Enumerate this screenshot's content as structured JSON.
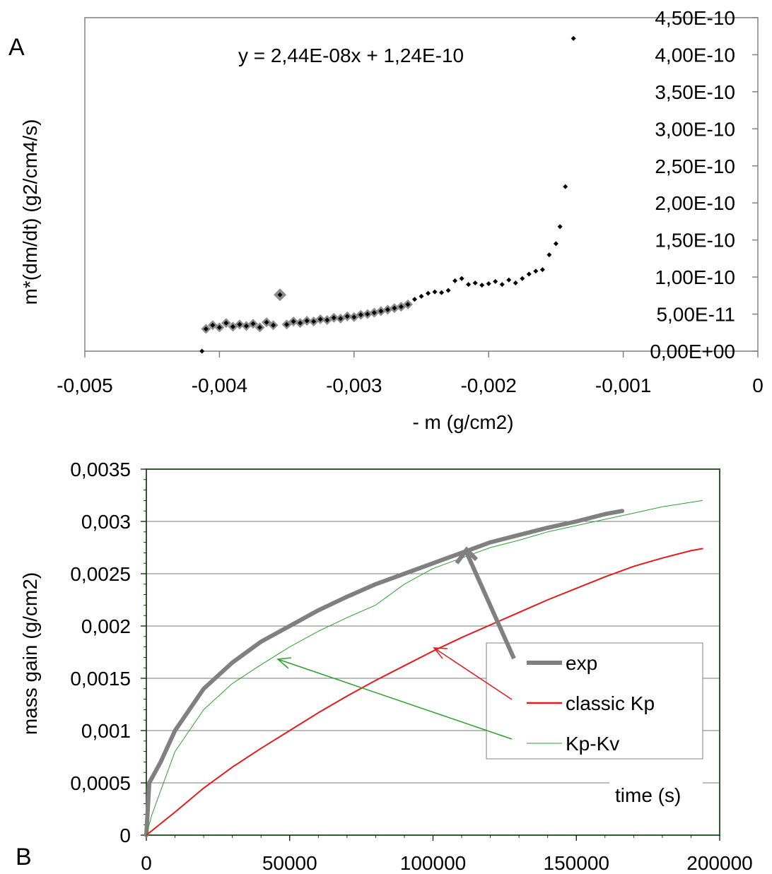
{
  "chart_data": [
    {
      "panel_label": "A",
      "type": "scatter",
      "equation": "y = 2,44E-08x + 1,24E-10",
      "xlabel": "- m (g/cm2)",
      "ylabel": "m*(dm/dt)  (g2/cm4/s)",
      "xlim": [
        -0.005,
        0
      ],
      "ylim": [
        0,
        4.5e-10
      ],
      "x_ticks": [
        -0.005,
        -0.004,
        -0.003,
        -0.002,
        -0.001,
        0
      ],
      "x_tick_labels": [
        "-0,005",
        "-0,004",
        "-0,003",
        "-0,002",
        "-0,001",
        "0"
      ],
      "y_ticks": [
        0,
        5e-11,
        1e-10,
        1.5e-10,
        2e-10,
        2.5e-10,
        3e-10,
        3.5e-10,
        4e-10,
        4.5e-10
      ],
      "y_tick_labels": [
        "0,00E+00",
        "5,00E-11",
        "1,00E-10",
        "1,50E-10",
        "2,00E-10",
        "2,50E-10",
        "3,00E-10",
        "3,50E-10",
        "4,00E-10",
        "4,50E-10"
      ],
      "y_axis_side": "right",
      "points": [
        [
          -0.00413,
          0.0
        ],
        [
          -0.0041,
          3e-11
        ],
        [
          -0.00405,
          3.5e-11
        ],
        [
          -0.004,
          3.2e-11
        ],
        [
          -0.00395,
          3.8e-11
        ],
        [
          -0.0039,
          3.3e-11
        ],
        [
          -0.00385,
          3.6e-11
        ],
        [
          -0.0038,
          3.4e-11
        ],
        [
          -0.00375,
          3.7e-11
        ],
        [
          -0.0037,
          3.2e-11
        ],
        [
          -0.00365,
          3.9e-11
        ],
        [
          -0.0036,
          3.5e-11
        ],
        [
          -0.00355,
          7.6e-11
        ],
        [
          -0.0035,
          3.6e-11
        ],
        [
          -0.00345,
          4e-11
        ],
        [
          -0.0034,
          3.8e-11
        ],
        [
          -0.00335,
          4.1e-11
        ],
        [
          -0.0033,
          4e-11
        ],
        [
          -0.00325,
          4.3e-11
        ],
        [
          -0.0032,
          4.2e-11
        ],
        [
          -0.00315,
          4.5e-11
        ],
        [
          -0.0031,
          4.4e-11
        ],
        [
          -0.00305,
          4.7e-11
        ],
        [
          -0.003,
          4.6e-11
        ],
        [
          -0.00295,
          4.9e-11
        ],
        [
          -0.0029,
          5e-11
        ],
        [
          -0.00285,
          5.2e-11
        ],
        [
          -0.0028,
          5.4e-11
        ],
        [
          -0.00275,
          5.6e-11
        ],
        [
          -0.0027,
          5.8e-11
        ],
        [
          -0.00265,
          6e-11
        ],
        [
          -0.0026,
          6.3e-11
        ],
        [
          -0.00255,
          7e-11
        ],
        [
          -0.0025,
          7.4e-11
        ],
        [
          -0.00245,
          7.8e-11
        ],
        [
          -0.0024,
          8e-11
        ],
        [
          -0.00235,
          7.9e-11
        ],
        [
          -0.0023,
          8.2e-11
        ],
        [
          -0.00225,
          9.5e-11
        ],
        [
          -0.0022,
          9.8e-11
        ],
        [
          -0.00215,
          9e-11
        ],
        [
          -0.0021,
          9.2e-11
        ],
        [
          -0.00205,
          8.9e-11
        ],
        [
          -0.002,
          9.1e-11
        ],
        [
          -0.00195,
          9.4e-11
        ],
        [
          -0.0019,
          9e-11
        ],
        [
          -0.00185,
          9.6e-11
        ],
        [
          -0.0018,
          9.2e-11
        ],
        [
          -0.00175,
          9.8e-11
        ],
        [
          -0.0017,
          1.04e-10
        ],
        [
          -0.00165,
          1.08e-10
        ],
        [
          -0.0016,
          1.1e-10
        ],
        [
          -0.00155,
          1.3e-10
        ],
        [
          -0.0015,
          1.45e-10
        ],
        [
          -0.00147,
          1.68e-10
        ],
        [
          -0.00143,
          2.22e-10
        ],
        [
          -0.00137,
          4.22e-10
        ]
      ]
    },
    {
      "panel_label": "B",
      "type": "line",
      "xlabel": "time (s)",
      "ylabel": "mass gain (g/cm2)",
      "xlim": [
        0,
        200000
      ],
      "ylim": [
        0,
        0.0035
      ],
      "x_ticks": [
        0,
        50000,
        100000,
        150000,
        200000
      ],
      "x_tick_labels": [
        "0",
        "50000",
        "100000",
        "150000",
        "200000"
      ],
      "y_ticks": [
        0,
        0.0005,
        0.001,
        0.0015,
        0.002,
        0.0025,
        0.003,
        0.0035
      ],
      "y_tick_labels": [
        "0",
        "0,0005",
        "0,001",
        "0,0015",
        "0,002",
        "0,0025",
        "0,003",
        "0,0035"
      ],
      "grid": true,
      "legend_position": "lower-right",
      "series": [
        {
          "name": "exp",
          "color": "#808080",
          "x": [
            0,
            1000,
            5000,
            10000,
            20000,
            30000,
            40000,
            50000,
            60000,
            70000,
            80000,
            90000,
            100000,
            110000,
            120000,
            130000,
            140000,
            150000,
            160000,
            166000
          ],
          "y": [
            0,
            0.0005,
            0.0007,
            0.001,
            0.0014,
            0.00165,
            0.00185,
            0.002,
            0.00215,
            0.00228,
            0.0024,
            0.0025,
            0.0026,
            0.0027,
            0.0028,
            0.00287,
            0.00294,
            0.003,
            0.00307,
            0.0031
          ]
        },
        {
          "name": "classic Kp",
          "color": "#e31a1c",
          "x": [
            0,
            10000,
            20000,
            30000,
            40000,
            50000,
            60000,
            70000,
            80000,
            90000,
            100000,
            110000,
            120000,
            130000,
            140000,
            150000,
            160000,
            170000,
            180000,
            190000,
            194000
          ],
          "y": [
            0,
            0.00022,
            0.00045,
            0.00065,
            0.00083,
            0.001,
            0.00117,
            0.00133,
            0.00148,
            0.00162,
            0.00176,
            0.00189,
            0.00201,
            0.00213,
            0.00225,
            0.00236,
            0.00247,
            0.00257,
            0.00265,
            0.00272,
            0.00274
          ]
        },
        {
          "name": "Kp-Kv",
          "color": "#2ca02c",
          "x": [
            0,
            2000,
            10000,
            20000,
            30000,
            40000,
            50000,
            60000,
            70000,
            80000,
            90000,
            100000,
            110000,
            120000,
            130000,
            140000,
            150000,
            160000,
            170000,
            180000,
            194000
          ],
          "y": [
            0,
            0.0002,
            0.0008,
            0.0012,
            0.00145,
            0.00163,
            0.0018,
            0.00195,
            0.00208,
            0.0022,
            0.0024,
            0.00255,
            0.00265,
            0.00275,
            0.00282,
            0.0029,
            0.00296,
            0.00302,
            0.00308,
            0.00314,
            0.0032
          ]
        }
      ]
    }
  ]
}
